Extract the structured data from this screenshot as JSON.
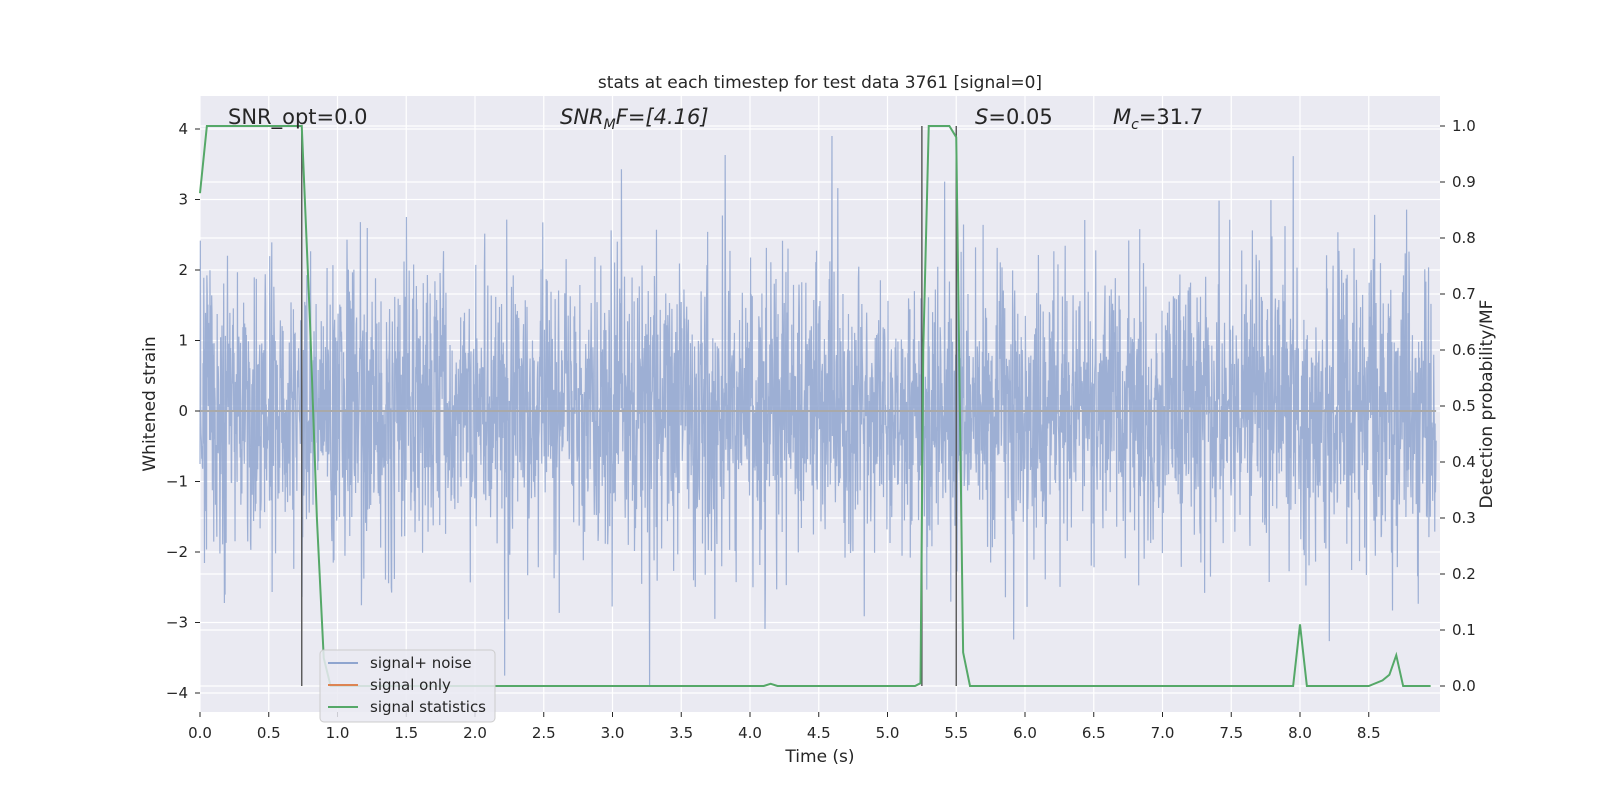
{
  "chart_data": {
    "type": "line",
    "title": "stats at each timestep for test data 3761 [signal=0]",
    "xlabel": "Time (s)",
    "ylabel": "Whitened strain",
    "y2label": "Detection probability/MF",
    "xlim": [
      0.0,
      9.0
    ],
    "ylim": [
      -4.25,
      4.4
    ],
    "y2lim": [
      -0.045,
      1.035
    ],
    "xticks": [
      "0.0",
      "0.5",
      "1.0",
      "1.5",
      "2.0",
      "2.5",
      "3.0",
      "3.5",
      "4.0",
      "4.5",
      "5.0",
      "5.5",
      "6.0",
      "6.5",
      "7.0",
      "7.5",
      "8.0",
      "8.5"
    ],
    "yticks": [
      "4",
      "3",
      "2",
      "1",
      "0",
      "−1",
      "−2",
      "−3",
      "−4"
    ],
    "y2ticks": [
      "1.0",
      "0.9",
      "0.8",
      "0.7",
      "0.6",
      "0.5",
      "0.4",
      "0.3",
      "0.2",
      "0.1",
      "0.0"
    ],
    "grid": true,
    "legend_position": "lower-left",
    "annotations": {
      "snr_opt": "SNR_opt=0.0",
      "snr_mf_prefix": "SNR",
      "snr_mf_sub": "M",
      "snr_mf_suffix": "F=[4.16]",
      "s_var": "S",
      "s_value": "=0.05",
      "mc_var": "M",
      "mc_sub": "c",
      "mc_value": "=31.7"
    },
    "vertical_lines_x": [
      0.74,
      5.25,
      5.5
    ],
    "series": [
      {
        "name": "signal+ noise",
        "color": "#8fa5cf",
        "note_values": "whitened strain noise, approx. standard normal, min ~ -3.9, max ~ 3.9"
      },
      {
        "name": "signal only",
        "color": "#dd8452",
        "values_constant": 0.0
      },
      {
        "name": "signal statistics",
        "color": "#55a868",
        "x": [
          0.0,
          0.05,
          0.1,
          0.2,
          0.3,
          0.4,
          0.5,
          0.6,
          0.7,
          0.74,
          0.8,
          0.85,
          0.9,
          0.95,
          1.0,
          2.0,
          3.0,
          4.0,
          4.1,
          4.15,
          4.2,
          4.5,
          5.0,
          5.2,
          5.24,
          5.26,
          5.3,
          5.35,
          5.4,
          5.45,
          5.5,
          5.55,
          5.6,
          5.7,
          6.0,
          7.0,
          7.5,
          7.9,
          7.95,
          8.0,
          8.05,
          8.1,
          8.5,
          8.6,
          8.65,
          8.7,
          8.75,
          8.8,
          8.95
        ],
        "values": [
          0.88,
          1.0,
          1.0,
          1.0,
          1.0,
          1.0,
          1.0,
          1.0,
          1.0,
          1.0,
          0.65,
          0.3,
          0.05,
          0.0,
          0.0,
          0.0,
          0.0,
          0.0,
          0.0,
          0.004,
          0.0,
          0.0,
          0.0,
          0.0,
          0.005,
          0.6,
          1.0,
          1.0,
          1.0,
          1.0,
          0.98,
          0.06,
          0.0,
          0.0,
          0.0,
          0.0,
          0.0,
          0.0,
          0.0,
          0.11,
          0.0,
          0.0,
          0.0,
          0.01,
          0.02,
          0.055,
          0.0,
          0.0,
          0.0
        ]
      }
    ]
  }
}
